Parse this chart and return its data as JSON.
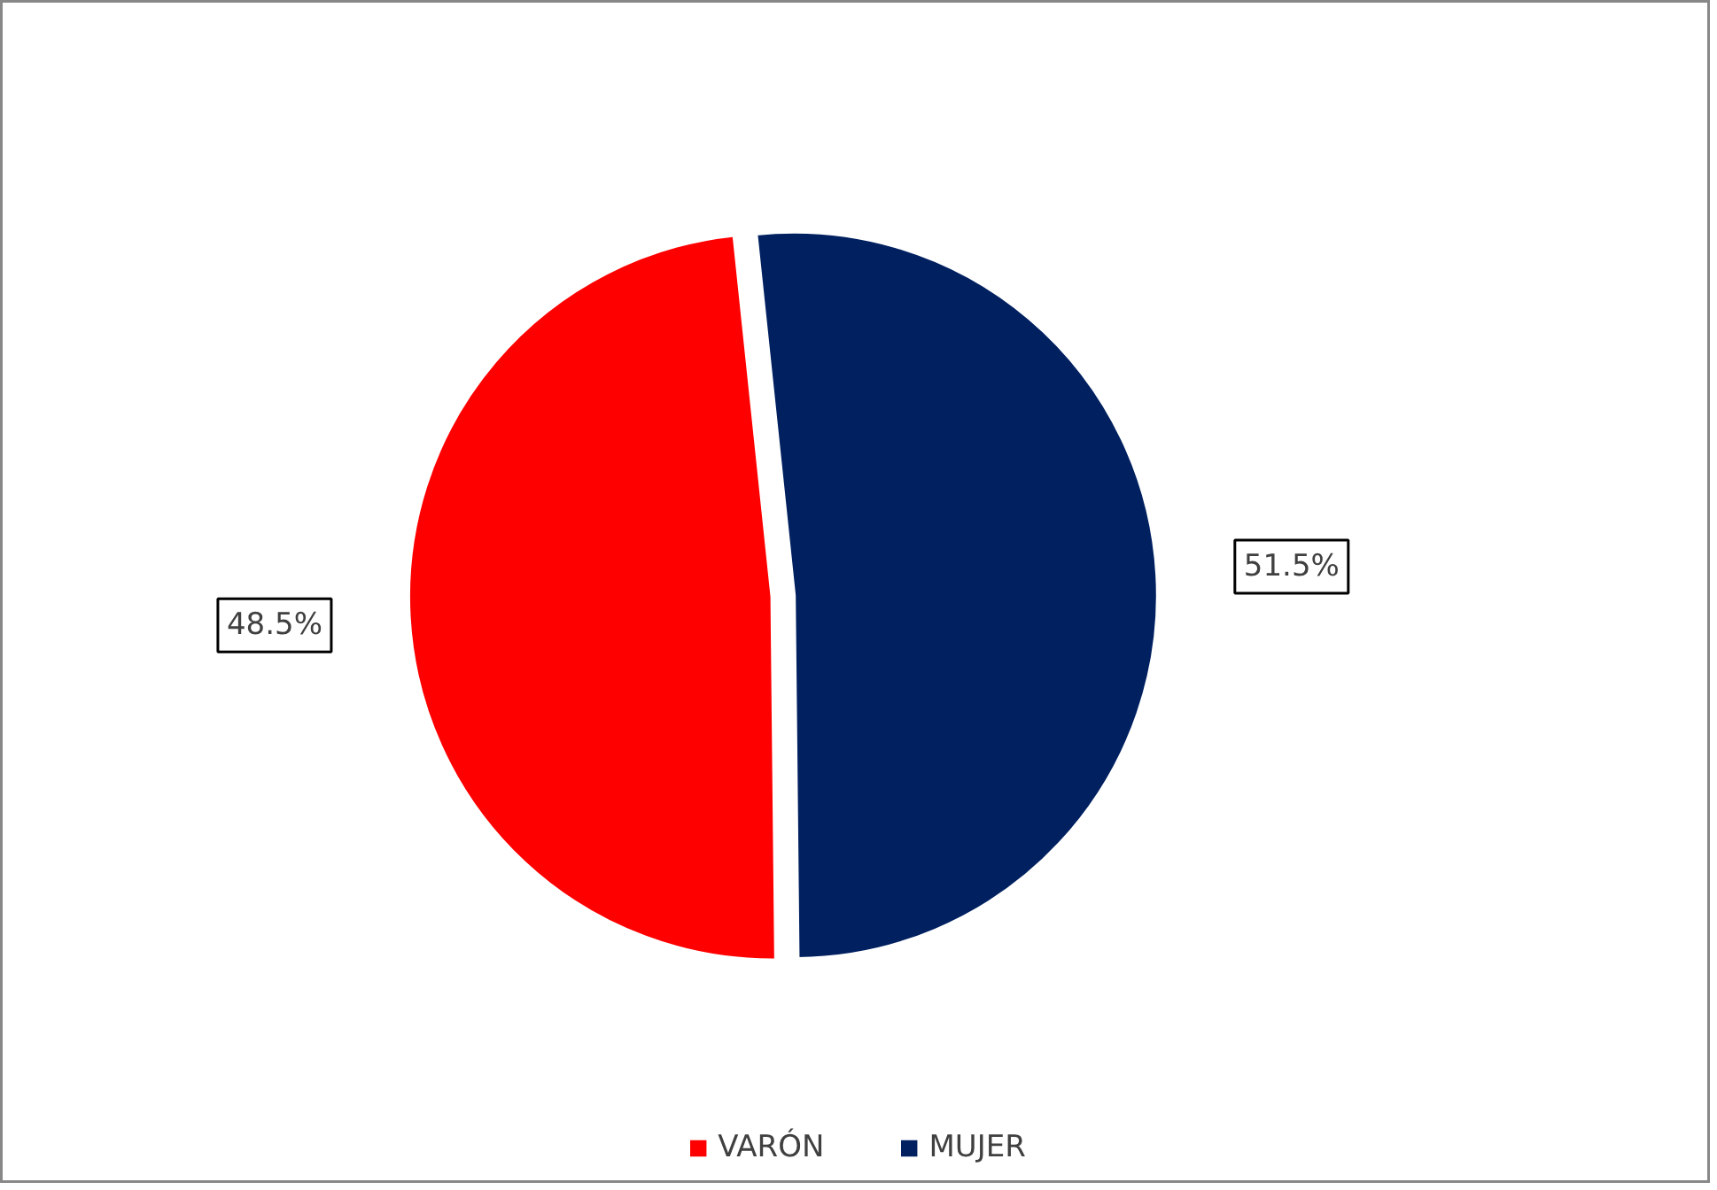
{
  "chart_data": {
    "type": "pie",
    "categories": [
      "VARÓN",
      "MUJER"
    ],
    "values": [
      48.5,
      51.5
    ],
    "colors": [
      "#ff0000",
      "#002060"
    ],
    "value_labels": [
      "48.5%",
      "51.5%"
    ],
    "legend": "bottom"
  }
}
